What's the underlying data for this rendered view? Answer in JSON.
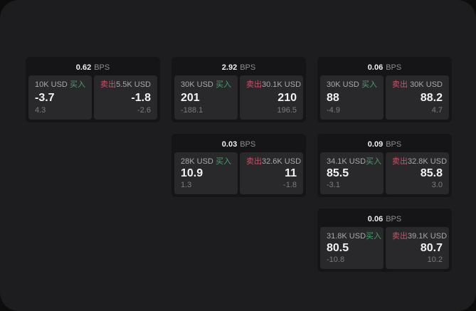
{
  "theme": {
    "background": "#0d0d0e",
    "surface": "#1d1d1f",
    "card": "#151517",
    "panel": "#29292b",
    "buy_color": "#3ea46c",
    "sell_color": "#d14f68"
  },
  "labels": {
    "bps_unit": "BPS",
    "buy": "买入",
    "sell": "卖出"
  },
  "cards": [
    {
      "row": 1,
      "col": 1,
      "bps": "0.62",
      "buy": {
        "amount": "10K USD",
        "price": "-3.7",
        "delta": "4.3"
      },
      "sell": {
        "amount": "5.5K USD",
        "price": "-1.8",
        "delta": "-2.6"
      }
    },
    {
      "row": 1,
      "col": 2,
      "bps": "2.92",
      "buy": {
        "amount": "30K USD",
        "price": "201",
        "delta": "-188.1"
      },
      "sell": {
        "amount": "30.1K USD",
        "price": "210",
        "delta": "196.5"
      }
    },
    {
      "row": 1,
      "col": 3,
      "bps": "0.06",
      "buy": {
        "amount": "30K USD",
        "price": "88",
        "delta": "-4.9"
      },
      "sell": {
        "amount": "30K USD",
        "price": "88.2",
        "delta": "4.7"
      }
    },
    {
      "row": 2,
      "col": 2,
      "bps": "0.03",
      "buy": {
        "amount": "28K USD",
        "price": "10.9",
        "delta": "1.3"
      },
      "sell": {
        "amount": "32.6K USD",
        "price": "11",
        "delta": "-1.8"
      }
    },
    {
      "row": 2,
      "col": 3,
      "bps": "0.09",
      "buy": {
        "amount": "34.1K USD",
        "price": "85.5",
        "delta": "-3.1"
      },
      "sell": {
        "amount": "32.8K USD",
        "price": "85.8",
        "delta": "3.0"
      }
    },
    {
      "row": 3,
      "col": 3,
      "bps": "0.06",
      "buy": {
        "amount": "31.8K USD",
        "price": "80.5",
        "delta": "-10.8"
      },
      "sell": {
        "amount": "39.1K USD",
        "price": "80.7",
        "delta": "10.2"
      }
    }
  ]
}
